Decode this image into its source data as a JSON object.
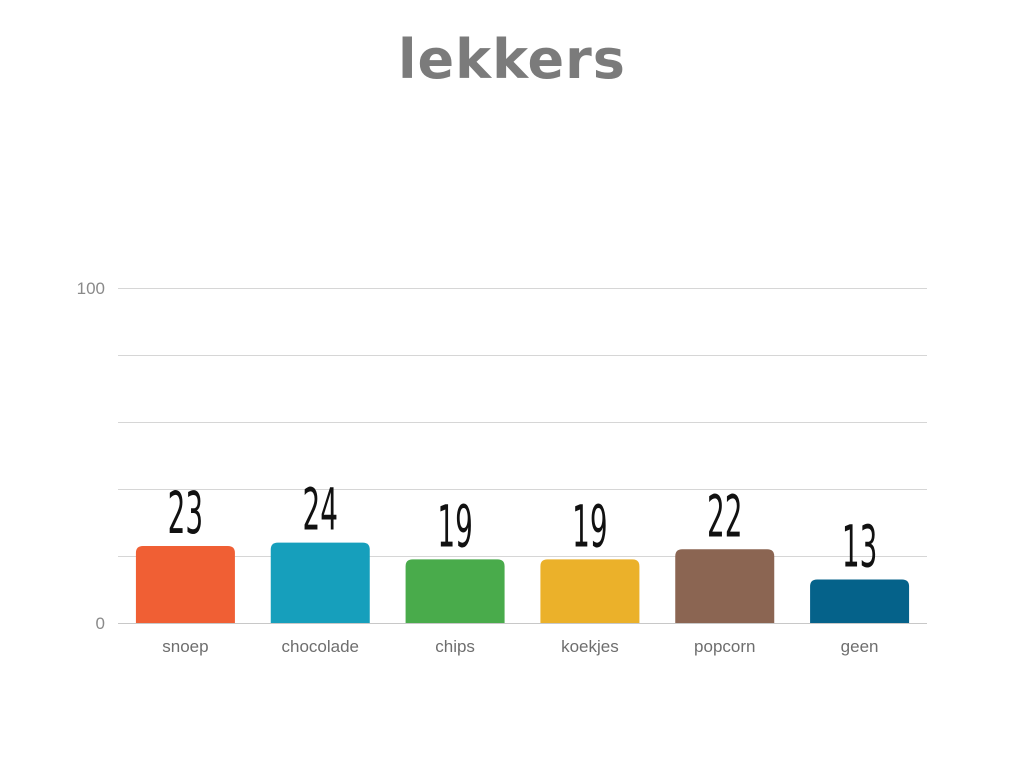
{
  "chart_data": {
    "type": "bar",
    "title": "lekkers",
    "categories": [
      "snoep",
      "chocolade",
      "chips",
      "koekjes",
      "popcorn",
      "geen"
    ],
    "values": [
      23,
      24,
      19,
      19,
      22,
      13
    ],
    "colors": [
      "#f05f34",
      "#169fbc",
      "#49ab4b",
      "#ebb12a",
      "#8b6552",
      "#05628a"
    ],
    "ylim": [
      0,
      100
    ],
    "yticks_labeled": [
      "0",
      "100"
    ],
    "gridlines": 5,
    "grid": true,
    "xlabel": "",
    "ylabel": ""
  }
}
